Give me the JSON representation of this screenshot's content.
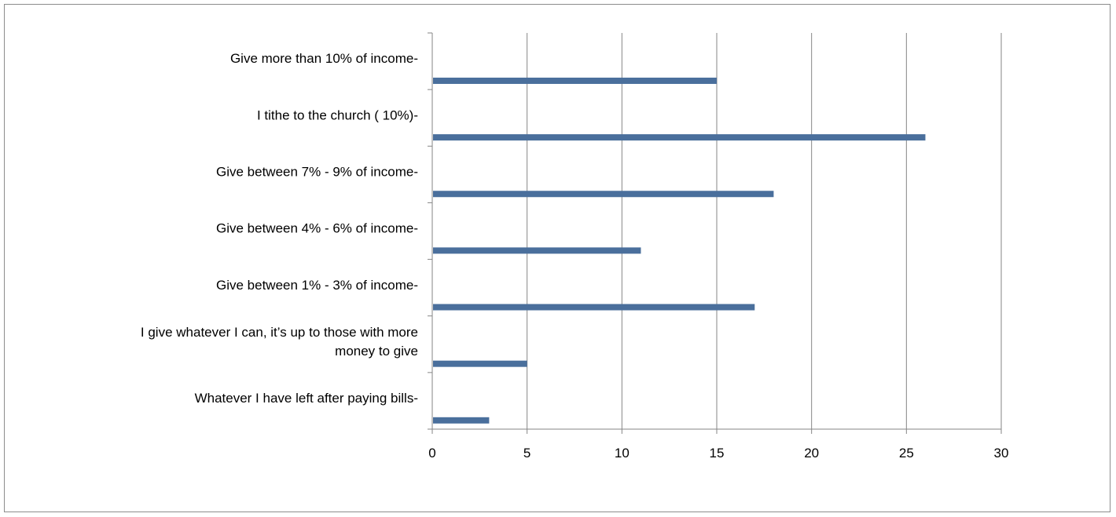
{
  "chart_data": {
    "type": "bar",
    "orientation": "horizontal",
    "categories": [
      "Give more than 10% of income-",
      "I tithe to the church ( 10%)-",
      "Give between 7% - 9% of income-",
      "Give between 4% - 6% of income-",
      "Give between 1% - 3% of income-",
      "I give whatever I can, it’s up to those with more money to give",
      "Whatever I have left after paying bills-"
    ],
    "category_lines": [
      [
        "Give more than 10% of income-"
      ],
      [
        "I tithe to the church ( 10%)-"
      ],
      [
        "Give between 7% - 9% of income-"
      ],
      [
        "Give between 4% - 6% of income-"
      ],
      [
        "Give between 1% - 3% of income-"
      ],
      [
        "I give whatever I can, it’s up to those with more",
        "money to give"
      ],
      [
        "Whatever I have left after paying bills-"
      ]
    ],
    "values": [
      15,
      26,
      18,
      11,
      17,
      5,
      3
    ],
    "xlim": [
      0,
      30
    ],
    "xticks": [
      "0",
      "5",
      "10",
      "15",
      "20",
      "25",
      "30"
    ],
    "title": "",
    "xlabel": "",
    "ylabel": "",
    "grid": "vertical",
    "legend": "none",
    "bar_color": "#4a6f9c",
    "grid_color": "#868686"
  }
}
